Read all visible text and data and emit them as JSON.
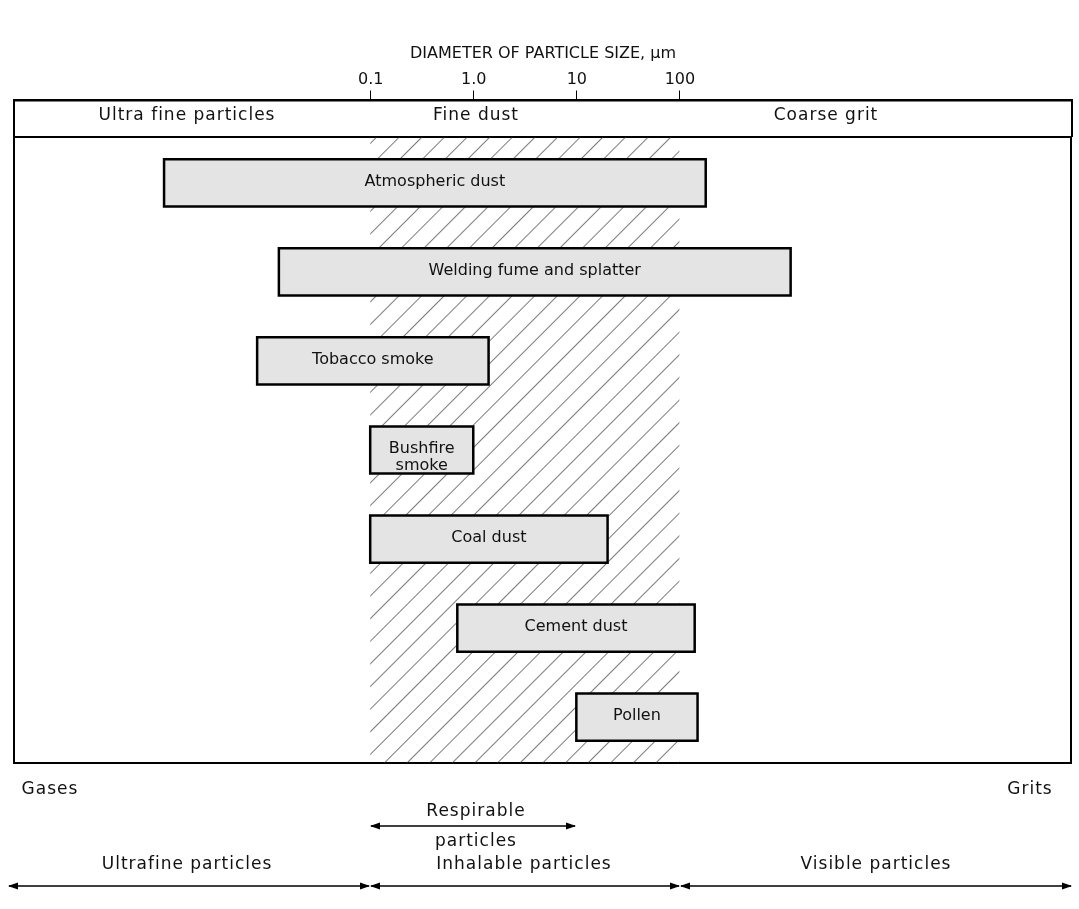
{
  "chart_data": {
    "type": "bar",
    "orientation": "horizontal",
    "xlabel": "DIAMETER OF PARTICLE SIZE, μm",
    "log": "x",
    "categories": [
      "Atmospheric dust",
      "Welding fume and splatter",
      "Tobacco smoke",
      "Bushfire smoke",
      "Coal dust",
      "Cement dust",
      "Pollen"
    ],
    "base": [
      0.001,
      0.013,
      0.008,
      0.1,
      0.1,
      0.7,
      10
    ],
    "values": [
      180,
      1200,
      1.4,
      0.9,
      20,
      140,
      140
    ],
    "color": "#e4e4e4",
    "xlim": [
      3.5e-05,
      630000
    ],
    "xticks": [
      0.1,
      {
        "value": 1,
        "label": "1.0"
      },
      10,
      100
    ],
    "tick_labels": "x",
    "bands": [
      {
        "axis": "x",
        "from": 0.1,
        "to": 100,
        "color": "#333333"
      }
    ],
    "annotations": [
      "Ultra fine particles",
      "Fine dust",
      "Coarse grit",
      "Gases",
      "Grits",
      "Respirable particles",
      "Ultrafine particles",
      "Inhalable particles",
      "Visible particles"
    ]
  }
}
